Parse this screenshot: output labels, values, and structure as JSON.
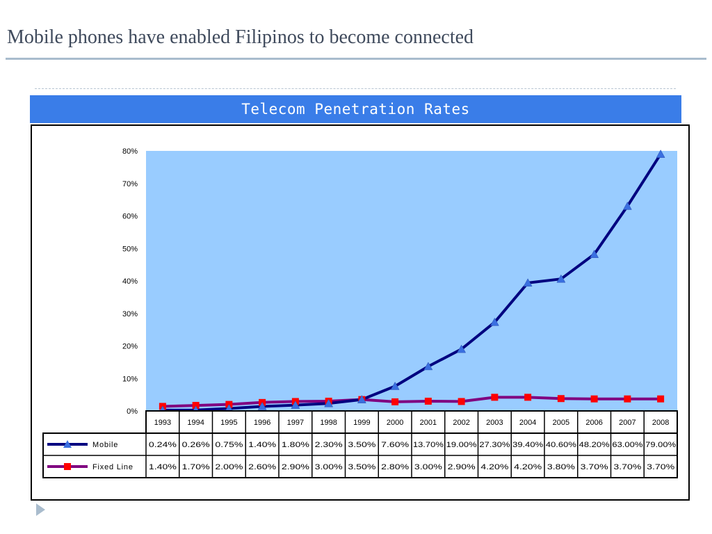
{
  "slide": {
    "title": "Mobile phones have enabled Filipinos to become connected"
  },
  "chart_banner": {
    "title": "Telecom Penetration Rates"
  },
  "colors": {
    "banner": "#3a7de8",
    "plot_area": "#99ccff",
    "mobile_line": "#000080",
    "mobile_marker": "#3a6fe0",
    "fixed_line": "#800080",
    "fixed_marker": "#ff0000"
  },
  "icons": {
    "next": "triangle-right-icon"
  },
  "chart_data": {
    "type": "line",
    "x": [
      "1993",
      "1994",
      "1995",
      "1996",
      "1997",
      "1998",
      "1999",
      "2000",
      "2001",
      "2002",
      "2003",
      "2004",
      "2005",
      "2006",
      "2007",
      "2008"
    ],
    "ylim": [
      0,
      80
    ],
    "yticks": [
      "0%",
      "10%",
      "20%",
      "30%",
      "40%",
      "50%",
      "60%",
      "70%",
      "80%"
    ],
    "grid": false,
    "series": [
      {
        "name": "Mobile",
        "marker": "triangle",
        "values": [
          0.24,
          0.26,
          0.75,
          1.4,
          1.8,
          2.3,
          3.5,
          7.6,
          13.7,
          19.0,
          27.3,
          39.4,
          40.6,
          48.2,
          63.0,
          79.0
        ],
        "labels": [
          "0.24%",
          "0.26%",
          "0.75%",
          "1.40%",
          "1.80%",
          "2.30%",
          "3.50%",
          "7.60%",
          "13.70%",
          "19.00%",
          "27.30%",
          "39.40%",
          "40.60%",
          "48.20%",
          "63.00%",
          "79.00%"
        ]
      },
      {
        "name": "Fixed Line",
        "marker": "square",
        "values": [
          1.4,
          1.7,
          2.0,
          2.6,
          2.9,
          3.0,
          3.5,
          2.8,
          3.0,
          2.9,
          4.2,
          4.2,
          3.8,
          3.7,
          3.7,
          3.7
        ],
        "labels": [
          "1.40%",
          "1.70%",
          "2.00%",
          "2.60%",
          "2.90%",
          "3.00%",
          "3.50%",
          "2.80%",
          "3.00%",
          "2.90%",
          "4.20%",
          "4.20%",
          "3.80%",
          "3.70%",
          "3.70%",
          "3.70%"
        ]
      }
    ]
  }
}
